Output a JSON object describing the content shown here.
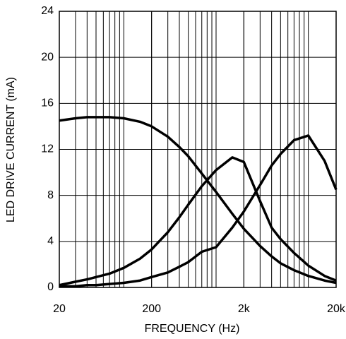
{
  "chart_data": {
    "type": "line",
    "x_label": "FREQUENCY (Hz)",
    "y_label": "LED DRIVE CURRENT (mA)",
    "x": [
      20,
      30,
      40,
      50,
      70,
      100,
      150,
      200,
      300,
      400,
      500,
      700,
      1000,
      1500,
      2000,
      3000,
      4000,
      5000,
      7000,
      10000,
      15000,
      20000
    ],
    "series": [
      {
        "color": "#000000",
        "values": [
          14.5,
          14.7,
          14.8,
          14.8,
          14.8,
          14.7,
          14.4,
          14.0,
          13.1,
          12.2,
          11.4,
          9.9,
          8.3,
          6.4,
          5.1,
          3.6,
          2.7,
          2.1,
          1.5,
          1.0,
          0.6,
          0.4
        ]
      },
      {
        "color": "#000000",
        "values": [
          0.2,
          0.5,
          0.7,
          0.9,
          1.2,
          1.7,
          2.5,
          3.3,
          4.8,
          6.1,
          7.2,
          8.8,
          10.2,
          11.3,
          10.9,
          7.5,
          5.2,
          4.2,
          3.0,
          1.9,
          1.0,
          0.6
        ]
      },
      {
        "color": "#000000",
        "values": [
          0.1,
          0.1,
          0.2,
          0.2,
          0.3,
          0.4,
          0.6,
          0.9,
          1.3,
          1.8,
          2.2,
          3.1,
          3.5,
          5.2,
          6.6,
          8.9,
          10.6,
          11.6,
          12.8,
          13.2,
          11.0,
          8.5
        ]
      }
    ],
    "xscale": "log",
    "xlim": [
      20,
      20000
    ],
    "xticks": [
      20,
      200,
      {
        "value": 2000,
        "label": "2k"
      },
      {
        "value": 20000,
        "label": "20k"
      }
    ],
    "ylim": [
      0,
      24
    ],
    "yticks": [
      0,
      4,
      8,
      12,
      16,
      20,
      24
    ],
    "grid": true
  }
}
